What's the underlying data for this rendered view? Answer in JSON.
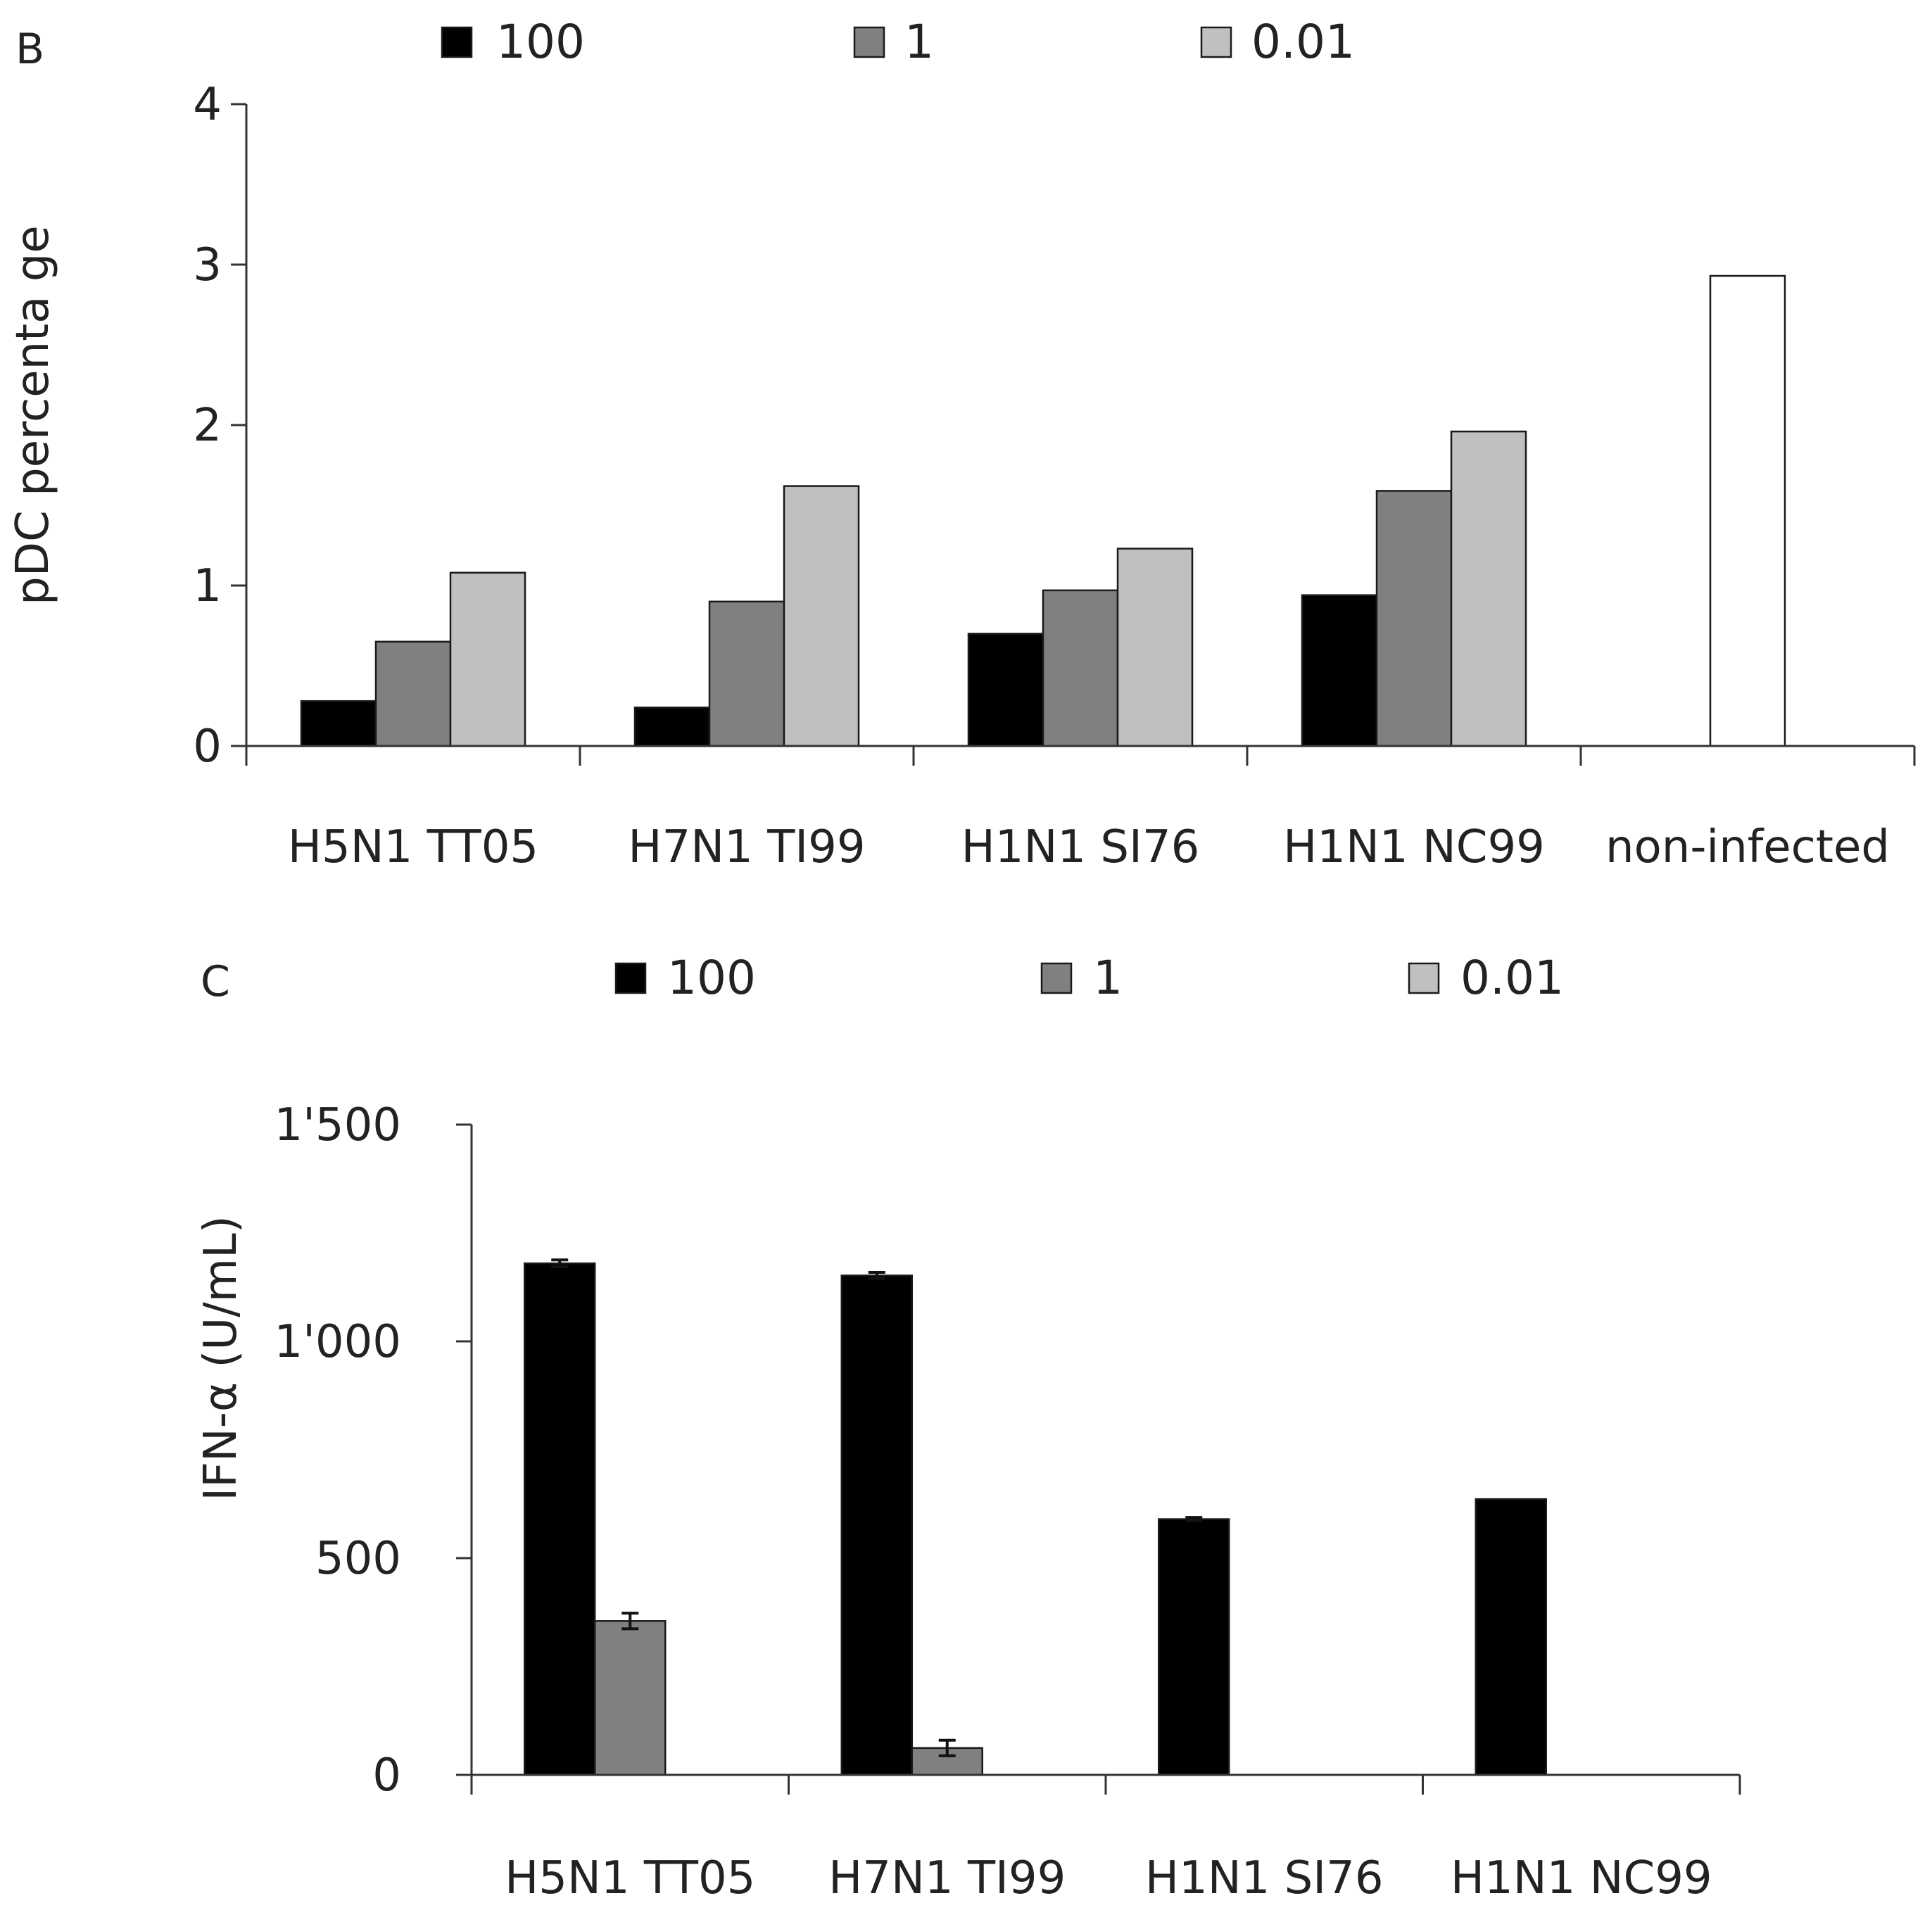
{
  "chart_data": [
    {
      "type": "bar",
      "panel_label": "B",
      "title": "",
      "xlabel": "",
      "ylabel": "pDC percenta ge",
      "ylim": [
        0,
        4
      ],
      "yticks": [
        "0",
        "1",
        "2",
        "3",
        "4"
      ],
      "grid": false,
      "legend_position": "top",
      "categories": [
        "H5N1 TT05",
        "H7N1 TI99",
        "H1N1 SI76",
        "H1N1 NC99",
        "non-infected"
      ],
      "series": [
        {
          "name": "100",
          "color": "#000000",
          "values": [
            0.28,
            0.24,
            0.7,
            0.94,
            null
          ]
        },
        {
          "name": "1",
          "color": "#808080",
          "values": [
            0.65,
            0.9,
            0.97,
            1.59,
            null
          ]
        },
        {
          "name": "0.01",
          "color": "#c0c0c0",
          "values": [
            1.08,
            1.62,
            1.23,
            1.96,
            null
          ]
        },
        {
          "name": "non-infected",
          "color": "#ffffff",
          "values": [
            null,
            null,
            null,
            null,
            2.93
          ],
          "in_legend": false
        }
      ]
    },
    {
      "type": "bar",
      "panel_label": "C",
      "title": "",
      "xlabel": "",
      "ylabel": "IFN-α (U/mL)",
      "ylim": [
        0,
        1500
      ],
      "yticks": [
        "0",
        "500",
        "1'000",
        "1'500"
      ],
      "grid": false,
      "legend_position": "top",
      "categories": [
        "H5N1 TT05",
        "H7N1 TI99",
        "H1N1 SI76",
        "H1N1 NC99"
      ],
      "series": [
        {
          "name": "100",
          "color": "#000000",
          "values": [
            1180,
            1152,
            590,
            636
          ],
          "errors": [
            8,
            7,
            4,
            0
          ]
        },
        {
          "name": "1",
          "color": "#808080",
          "values": [
            355,
            62,
            0,
            0
          ],
          "errors": [
            18,
            18,
            0,
            0
          ]
        },
        {
          "name": "0.01",
          "color": "#c0c0c0",
          "values": [
            0,
            0,
            0,
            0
          ],
          "errors": [
            0,
            0,
            0,
            0
          ]
        }
      ]
    }
  ]
}
